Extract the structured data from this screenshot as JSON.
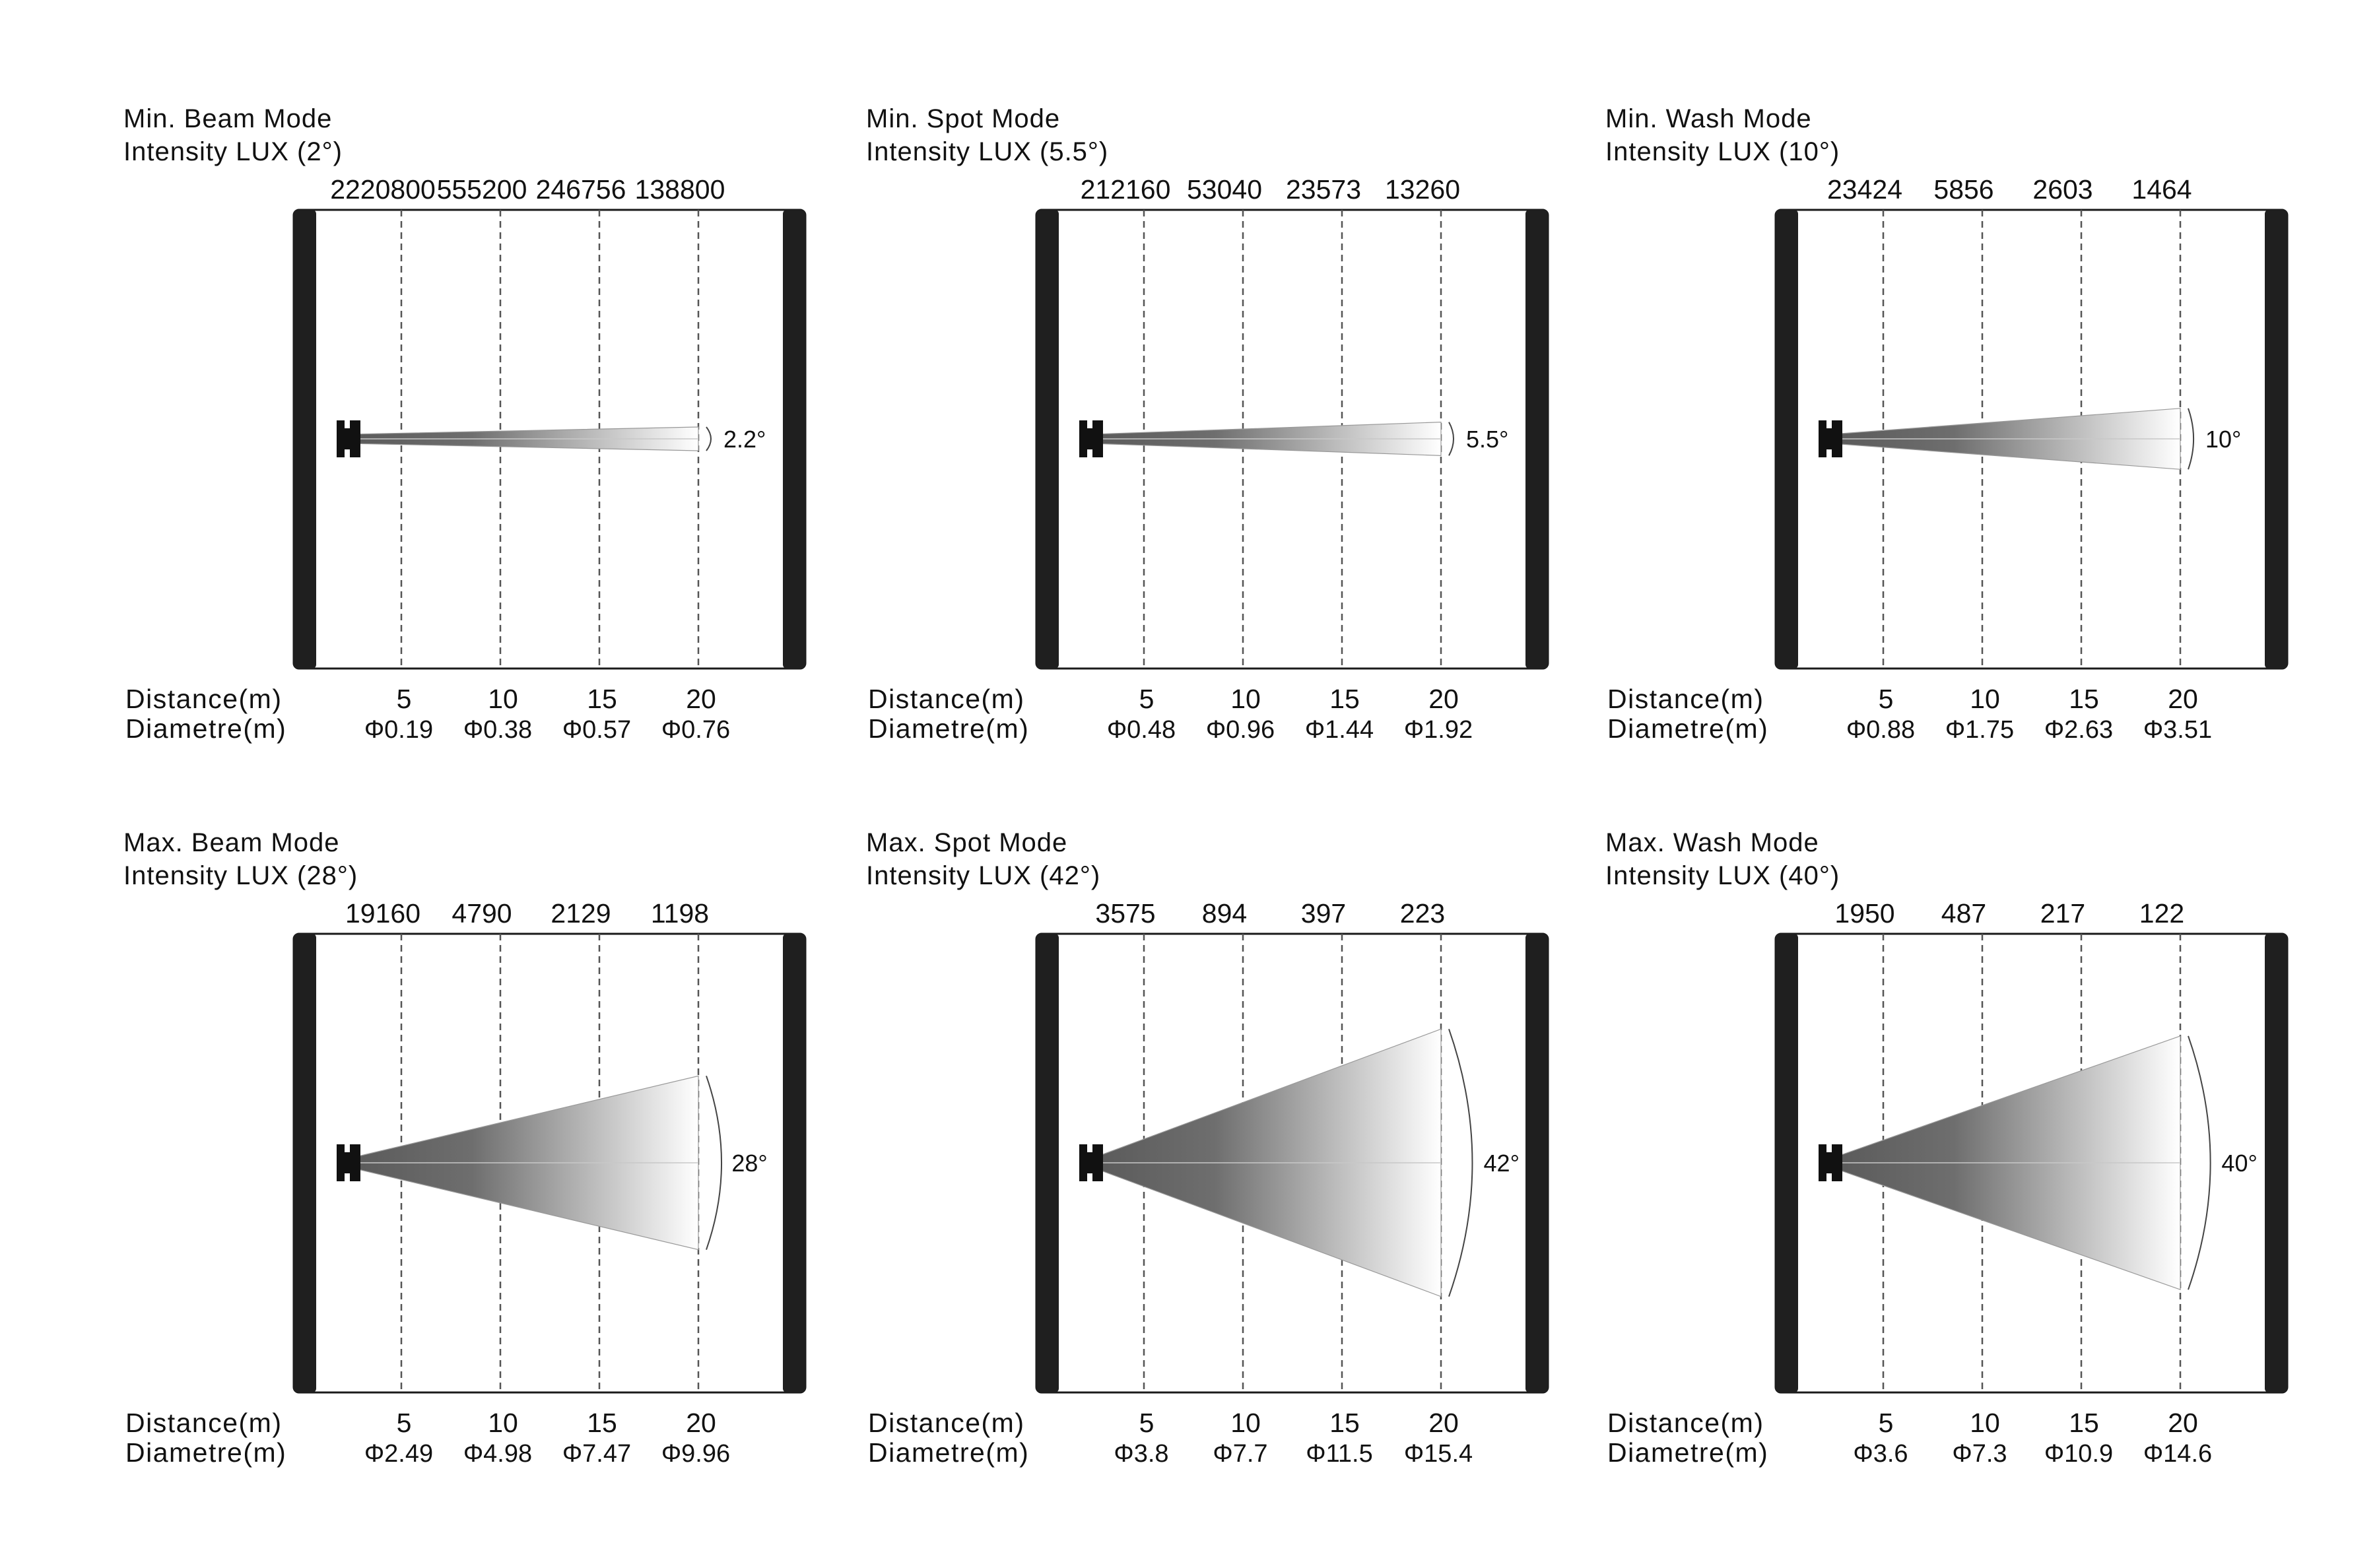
{
  "panels": [
    {
      "mode": "Min. Beam Mode",
      "intensity_title": "Intensity LUX (2°)",
      "lux": [
        "2220800",
        "555200",
        "246756",
        "138800"
      ],
      "distance_label": "Distance(m)",
      "diameter_label": "Diametre(m)",
      "distances": [
        "5",
        "10",
        "15",
        "20"
      ],
      "diameters": [
        "Φ0.19",
        "Φ0.38",
        "Φ0.57",
        "Φ0.76"
      ],
      "angle_label": "2.2°",
      "beam_angle_deg": 2.2
    },
    {
      "mode": "Min. Spot Mode",
      "intensity_title": "Intensity LUX (5.5°)",
      "lux": [
        "212160",
        "53040",
        "23573",
        "13260"
      ],
      "distance_label": "Distance(m)",
      "diameter_label": "Diametre(m)",
      "distances": [
        "5",
        "10",
        "15",
        "20"
      ],
      "diameters": [
        "Φ0.48",
        "Φ0.96",
        "Φ1.44",
        "Φ1.92"
      ],
      "angle_label": "5.5°",
      "beam_angle_deg": 5.5
    },
    {
      "mode": "Min. Wash Mode",
      "intensity_title": "Intensity LUX (10°)",
      "lux": [
        "23424",
        "5856",
        "2603",
        "1464"
      ],
      "distance_label": "Distance(m)",
      "diameter_label": "Diametre(m)",
      "distances": [
        "5",
        "10",
        "15",
        "20"
      ],
      "diameters": [
        "Φ0.88",
        "Φ1.75",
        "Φ2.63",
        "Φ3.51"
      ],
      "angle_label": "10°",
      "beam_angle_deg": 10
    },
    {
      "mode": "Max. Beam Mode",
      "intensity_title": "Intensity LUX (28°)",
      "lux": [
        "19160",
        "4790",
        "2129",
        "1198"
      ],
      "distance_label": "Distance(m)",
      "diameter_label": "Diametre(m)",
      "distances": [
        "5",
        "10",
        "15",
        "20"
      ],
      "diameters": [
        "Φ2.49",
        "Φ4.98",
        "Φ7.47",
        "Φ9.96"
      ],
      "angle_label": "28°",
      "beam_angle_deg": 28
    },
    {
      "mode": "Max. Spot Mode",
      "intensity_title": "Intensity LUX (42°)",
      "lux": [
        "3575",
        "894",
        "397",
        "223"
      ],
      "distance_label": "Distance(m)",
      "diameter_label": "Diametre(m)",
      "distances": [
        "5",
        "10",
        "15",
        "20"
      ],
      "diameters": [
        "Φ3.8",
        "Φ7.7",
        "Φ11.5",
        "Φ15.4"
      ],
      "angle_label": "42°",
      "beam_angle_deg": 42
    },
    {
      "mode": "Max. Wash Mode",
      "intensity_title": "Intensity LUX (40°)",
      "lux": [
        "1950",
        "487",
        "217",
        "122"
      ],
      "distance_label": "Distance(m)",
      "diameter_label": "Diametre(m)",
      "distances": [
        "5",
        "10",
        "15",
        "20"
      ],
      "diameters": [
        "Φ3.6",
        "Φ7.3",
        "Φ10.9",
        "Φ14.6"
      ],
      "angle_label": "40°",
      "beam_angle_deg": 40
    }
  ],
  "colors": {
    "wall": "#1f1f1f",
    "beam_dark": "#5a5a5a",
    "beam_light": "#ffffff",
    "text": "#111111"
  }
}
